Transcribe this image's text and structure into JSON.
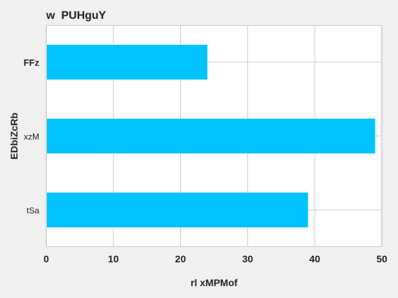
{
  "chart_data": {
    "type": "bar",
    "orientation": "horizontal",
    "title": "w  PUHguY",
    "xlabel": "rl xMPMof",
    "ylabel": "EDbiZcRb",
    "categories": [
      "FFz",
      "xzM",
      "tSa"
    ],
    "values": [
      24,
      49,
      39
    ],
    "xlim": [
      0,
      50
    ],
    "xticks": [
      0,
      10,
      20,
      30,
      40,
      50
    ],
    "grid": true,
    "colors": {
      "bar": "#00c3ff",
      "plot_bg": "#ffffff",
      "page_bg": "#f0f0f0",
      "grid": "#cccccc",
      "text": "#222222"
    }
  }
}
